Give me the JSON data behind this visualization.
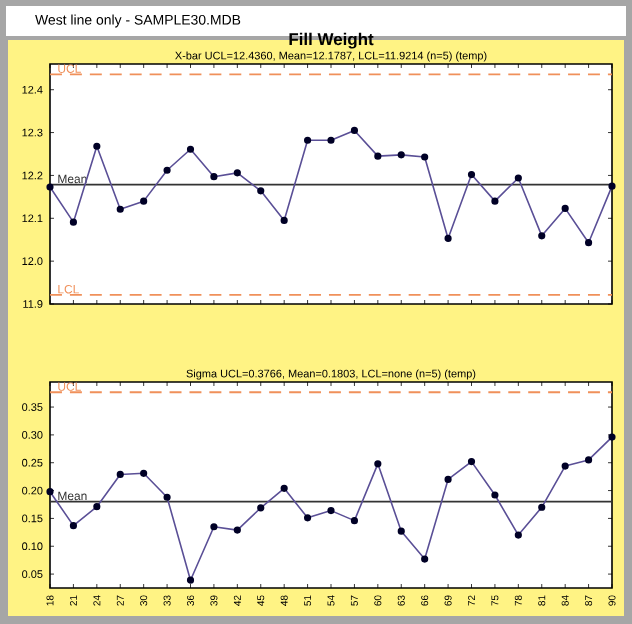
{
  "chart_data": [
    {
      "type": "line",
      "title": "Fill Weight",
      "subtitle": "X-bar  UCL=12.4360, Mean=12.1787, LCL=11.9214 (n=5) (temp)",
      "annotations": [
        "West line only - SAMPLE30.MDB"
      ],
      "categories": [
        "18",
        "21",
        "24",
        "27",
        "30",
        "33",
        "36",
        "39",
        "42",
        "45",
        "48",
        "51",
        "54",
        "57",
        "60",
        "63",
        "66",
        "69",
        "72",
        "75",
        "78",
        "81",
        "84",
        "87",
        "90"
      ],
      "series": [
        {
          "color": "#5a4f96",
          "values": [
            12.173,
            12.091,
            12.268,
            12.121,
            12.14,
            12.212,
            12.261,
            12.197,
            12.206,
            12.164,
            12.095,
            12.282,
            12.282,
            12.305,
            12.245,
            12.248,
            12.243,
            12.053,
            12.202,
            12.14,
            12.194,
            12.059,
            12.123,
            12.043,
            12.175
          ]
        }
      ],
      "ylim": [
        11.9,
        12.46
      ],
      "yticks": [
        11.9,
        {
          "value": 12.0,
          "label": "12.0"
        },
        12.1,
        12.2,
        12.3,
        12.4
      ],
      "ref_lines": [
        {
          "axis": "y",
          "value": 12.436,
          "label": "UCL",
          "color": "#f0905a",
          "line_style": "dashed"
        },
        {
          "axis": "y",
          "value": 12.1787,
          "label": "Mean",
          "color": "#333333",
          "line_style": "solid"
        },
        {
          "axis": "y",
          "value": 11.9214,
          "label": "LCL",
          "color": "#f0905a",
          "line_style": "dashed"
        }
      ],
      "tick_labels": "y",
      "marker": "circle",
      "line_style": "solid",
      "grid": false
    },
    {
      "type": "line",
      "title": "Sigma  UCL=0.3766, Mean=0.1803, LCL=none (n=5) (temp)",
      "categories": [
        "18",
        "21",
        "24",
        "27",
        "30",
        "33",
        "36",
        "39",
        "42",
        "45",
        "48",
        "51",
        "54",
        "57",
        "60",
        "63",
        "66",
        "69",
        "72",
        "75",
        "78",
        "81",
        "84",
        "87",
        "90"
      ],
      "series": [
        {
          "color": "#5a4f96",
          "values": [
            0.198,
            0.137,
            0.171,
            0.229,
            0.231,
            0.188,
            0.039,
            0.135,
            0.129,
            0.169,
            0.204,
            0.151,
            0.164,
            0.146,
            0.248,
            0.127,
            0.077,
            0.22,
            0.252,
            0.192,
            0.12,
            0.17,
            0.244,
            0.255,
            0.296
          ]
        }
      ],
      "ylim": [
        0.025,
        0.395
      ],
      "yticks": [
        0.05,
        {
          "value": 0.1,
          "label": "0.10"
        },
        0.15,
        {
          "value": 0.2,
          "label": "0.20"
        },
        0.25,
        {
          "value": 0.3,
          "label": "0.30"
        },
        0.35
      ],
      "ref_lines": [
        {
          "axis": "y",
          "value": 0.3766,
          "label": "UCL",
          "color": "#f0905a",
          "line_style": "dashed"
        },
        {
          "axis": "y",
          "value": 0.1803,
          "label": "Mean",
          "color": "#333333",
          "line_style": "solid"
        }
      ],
      "marker": "circle",
      "line_style": "solid",
      "grid": false
    }
  ]
}
